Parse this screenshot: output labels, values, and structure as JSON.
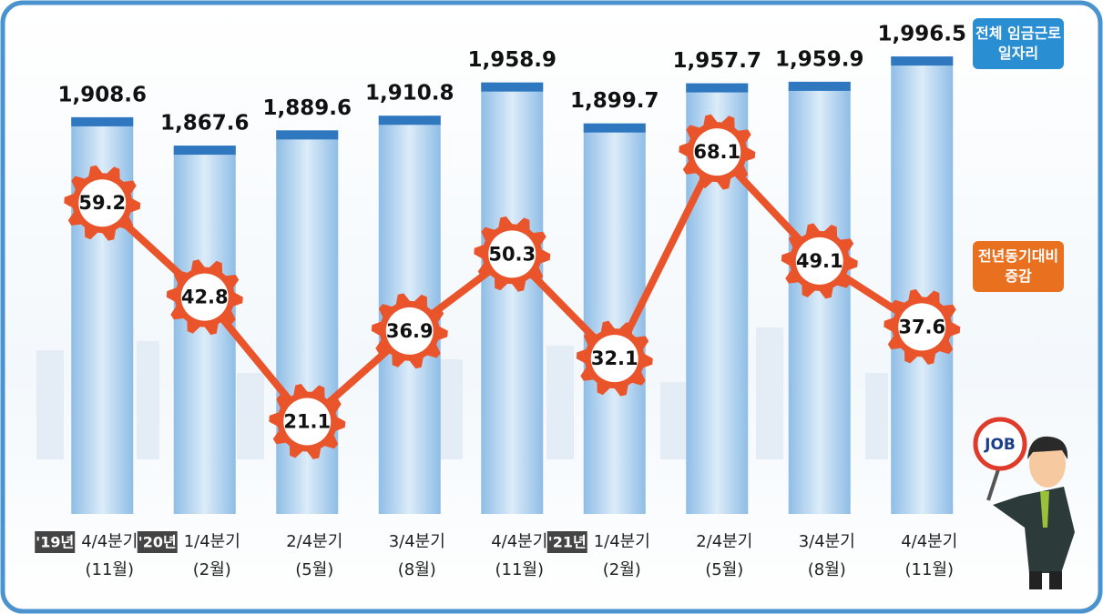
{
  "chart_data": {
    "type": "bar-line",
    "categories": [
      "4/4분기",
      "1/4분기",
      "2/4분기",
      "3/4분기",
      "4/4분기",
      "1/4분기",
      "2/4분기",
      "3/4분기",
      "4/4분기"
    ],
    "months": [
      "(11월)",
      "(2월)",
      "(5월)",
      "(8월)",
      "(11월)",
      "(2월)",
      "(5월)",
      "(8월)",
      "(11월)"
    ],
    "year_labels": [
      "'19년",
      "'20년",
      null,
      null,
      null,
      "'21년",
      null,
      null,
      null
    ],
    "ylim": [
      1335,
      2040
    ],
    "y2lim": [
      5,
      90
    ],
    "series": [
      {
        "name": "전체 임금근로 일자리",
        "type": "bar",
        "color": "#2f78c0",
        "values": [
          1908.6,
          1867.6,
          1889.6,
          1910.8,
          1958.9,
          1899.7,
          1957.7,
          1959.9,
          1996.5
        ],
        "value_labels": [
          "1,908.6",
          "1,867.6",
          "1,889.6",
          "1,910.8",
          "1,958.9",
          "1,899.7",
          "1,957.7",
          "1,959.9",
          "1,996.5"
        ]
      },
      {
        "name": "전년동기대비 증감",
        "type": "line",
        "axis": "y2",
        "color": "#e9542b",
        "values": [
          59.2,
          42.8,
          21.1,
          36.9,
          50.3,
          32.1,
          68.1,
          49.1,
          37.6
        ]
      }
    ]
  },
  "illustration": {
    "sign": "JOB"
  }
}
